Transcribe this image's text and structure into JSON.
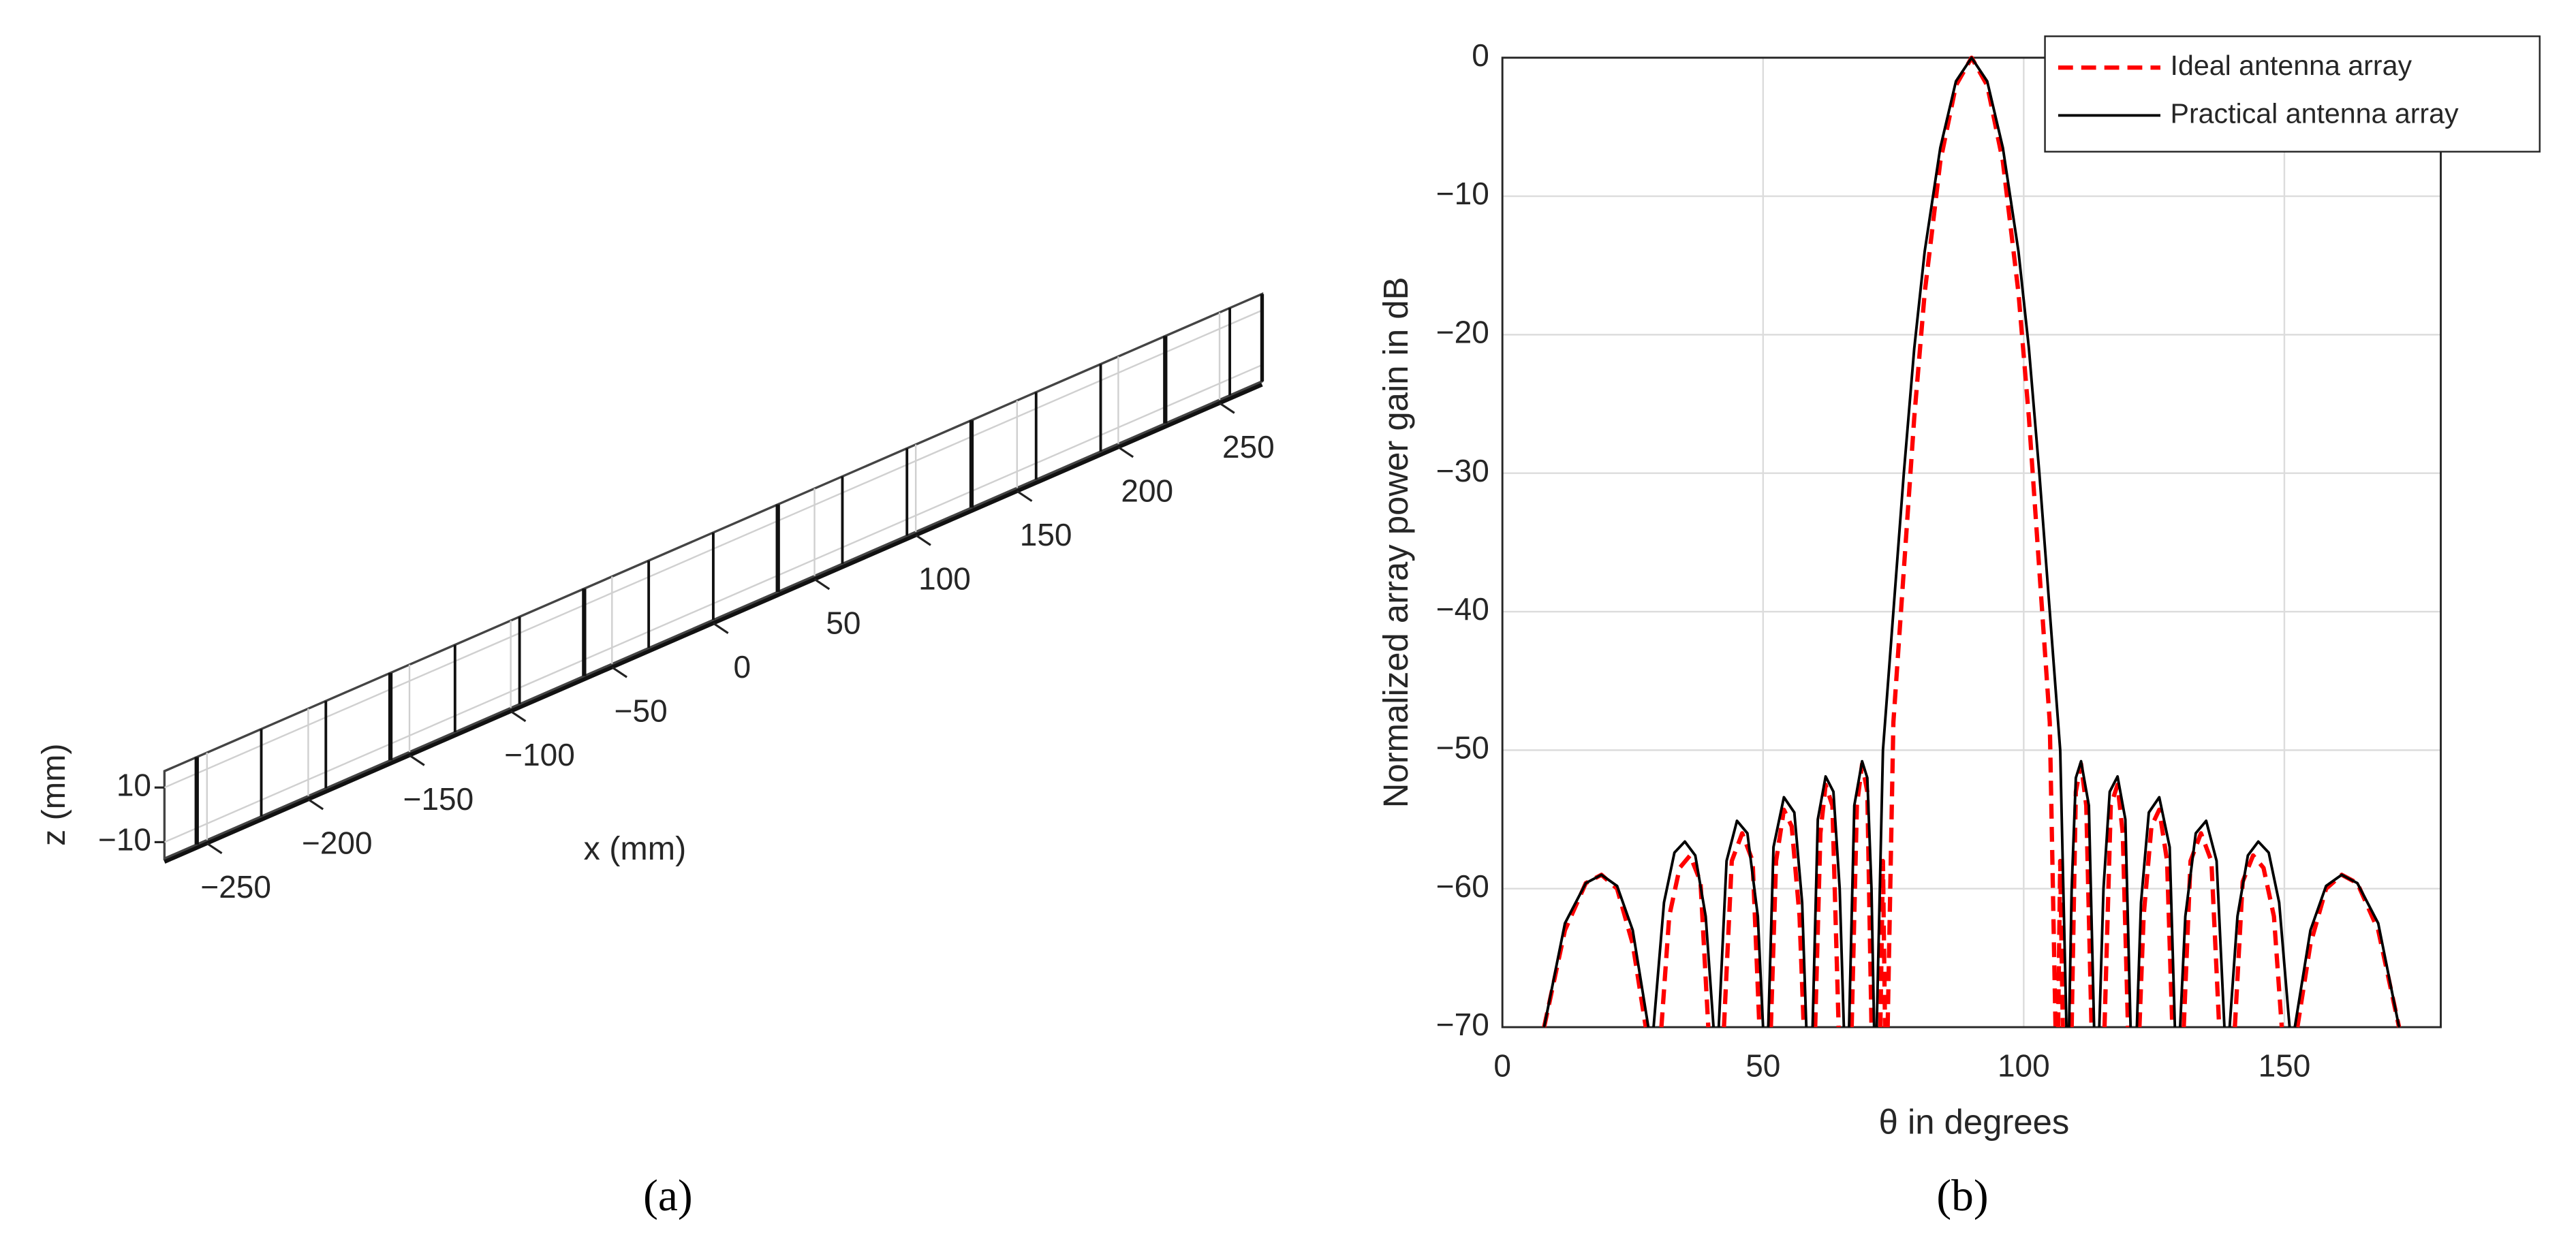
{
  "chart_data": [
    {
      "type": "array3d",
      "xlabel": "x (mm)",
      "zlabel": "z (mm)",
      "caption": "(a)",
      "xlim": [
        -271,
        271
      ],
      "xticks": [
        {
          "value": -250,
          "label": "−250"
        },
        {
          "value": -200,
          "label": "−200"
        },
        {
          "value": -150,
          "label": "−150"
        },
        {
          "value": -100,
          "label": "−100"
        },
        {
          "value": -50,
          "label": "−50"
        },
        0,
        50,
        100,
        150,
        200,
        250
      ],
      "zlim": [
        -16,
        16
      ],
      "zticks": [
        10,
        {
          "value": -10,
          "label": "−10"
        }
      ],
      "grid": true
    },
    {
      "type": "line",
      "xlabel": "θ in degrees",
      "ylabel": "Normalized array power gain in dB",
      "caption": "(b)",
      "xlim": [
        0,
        180
      ],
      "xticks": [
        0,
        50,
        100,
        150
      ],
      "ylim": [
        -70,
        0
      ],
      "yticks": [
        0,
        {
          "value": -10,
          "label": "−10"
        },
        {
          "value": -20,
          "label": "−20"
        },
        {
          "value": -30,
          "label": "−30"
        },
        {
          "value": -40,
          "label": "−40"
        },
        {
          "value": -50,
          "label": "−50"
        },
        {
          "value": -60,
          "label": "−60"
        },
        {
          "value": -70,
          "label": "−70"
        }
      ],
      "grid": true,
      "legend": "upper right",
      "series": [
        {
          "name": "Ideal antenna array",
          "color": "#ff0000",
          "linestyle": "dashed",
          "x": [
            8,
            12,
            16,
            19,
            22,
            25,
            27.5,
            null,
            30.5,
            32,
            34,
            36,
            38,
            39.5,
            null,
            42.5,
            44,
            46,
            48,
            49.3,
            null,
            51.5,
            52.5,
            54,
            55.5,
            57,
            57.8,
            null,
            60,
            61,
            62,
            63.3,
            64.5,
            null,
            67,
            68,
            69,
            70,
            70.8,
            null,
            72.5,
            73,
            73.4,
            null,
            73.9,
            75,
            77,
            79,
            81,
            84,
            87,
            90,
            93,
            96,
            99,
            101,
            103,
            105,
            106.1,
            null,
            106.6,
            107,
            107.5,
            null,
            109.2,
            110,
            111,
            112,
            113,
            null,
            115.5,
            116.7,
            118,
            119,
            120,
            null,
            122.2,
            123,
            124.5,
            126,
            127.5,
            128.5,
            null,
            130.7,
            132,
            134,
            136,
            137.5,
            null,
            140.5,
            142,
            144,
            146,
            148,
            149.5,
            null,
            152.5,
            155,
            158,
            161,
            164,
            168,
            172
          ],
          "values": [
            -70,
            -63,
            -59.6,
            -59,
            -60,
            -64,
            -70,
            null,
            -70,
            -62,
            -58.5,
            -57.6,
            -59.5,
            -70,
            null,
            -70,
            -58,
            -56,
            -58,
            -70,
            null,
            -70,
            -58,
            -54.3,
            -55.5,
            -62,
            -70,
            null,
            -70,
            -56,
            -52.5,
            -54,
            -70,
            null,
            -70,
            -54,
            -51,
            -53,
            -70,
            null,
            -70,
            -58,
            -70,
            null,
            -70,
            -48,
            -37,
            -26,
            -17,
            -7.5,
            -2,
            0,
            -2,
            -7.5,
            -17,
            -26,
            -37,
            -48,
            -70,
            null,
            -70,
            -58,
            -70,
            null,
            -70,
            -53,
            -51,
            -54,
            -70,
            null,
            -70,
            -54,
            -52.5,
            -56,
            -70,
            null,
            -70,
            -62,
            -55.5,
            -54.3,
            -58,
            -70,
            null,
            -70,
            -58,
            -56,
            -58,
            -70,
            null,
            -70,
            -59.5,
            -57.6,
            -58.5,
            -62,
            -70,
            null,
            -70,
            -64,
            -60,
            -59,
            -59.6,
            -63,
            -70
          ]
        },
        {
          "name": "Practical antenna array",
          "color": "#000000",
          "linestyle": "solid",
          "x": [
            8,
            12,
            16,
            19,
            22,
            25,
            28,
            null,
            29,
            31,
            33,
            35,
            37,
            39,
            40.5,
            null,
            41.5,
            43,
            45,
            47,
            49,
            50,
            null,
            51,
            52,
            54,
            56,
            57.5,
            58.3,
            null,
            59.5,
            60.5,
            62,
            63.5,
            64.7,
            65.5,
            null,
            66.5,
            67.5,
            69,
            70,
            70.8,
            71.3,
            null,
            71.8,
            73,
            75,
            77,
            79,
            81,
            84,
            87,
            90,
            93,
            96,
            99,
            101,
            103,
            105,
            107,
            108.2,
            null,
            108.7,
            109.2,
            110,
            111,
            112.5,
            113.5,
            null,
            114.5,
            115.3,
            116.5,
            118,
            119.5,
            120.5,
            null,
            121.7,
            122.5,
            124,
            126,
            128,
            129,
            null,
            130,
            131,
            133,
            135,
            137,
            138.5,
            null,
            139.5,
            141,
            143,
            145,
            147,
            149,
            151,
            null,
            152,
            155,
            158,
            161,
            164,
            168,
            172
          ],
          "values": [
            -70,
            -62.5,
            -59.6,
            -59,
            -59.8,
            -63,
            -70,
            null,
            -70,
            -61,
            -57.4,
            -56.6,
            -57.6,
            -62,
            -70,
            null,
            -70,
            -58,
            -55.1,
            -56,
            -62,
            -70,
            null,
            -70,
            -57,
            -53.4,
            -54.5,
            -61,
            -70,
            null,
            -70,
            -55,
            -51.9,
            -53,
            -60,
            -70,
            null,
            -70,
            -54,
            -50.8,
            -52,
            -60,
            -70,
            null,
            -70,
            -50,
            -40,
            -30,
            -21,
            -14,
            -6.5,
            -1.7,
            0,
            -1.7,
            -6.5,
            -14,
            -21,
            -30,
            -40,
            -50,
            -70,
            null,
            -70,
            -60,
            -52,
            -50.8,
            -54,
            -70,
            null,
            -70,
            -60,
            -53,
            -51.9,
            -55,
            -70,
            null,
            -70,
            -61,
            -54.5,
            -53.4,
            -57,
            -70,
            null,
            -70,
            -62,
            -56,
            -55.1,
            -58,
            -70,
            null,
            -70,
            -62,
            -57.6,
            -56.6,
            -57.4,
            -61,
            -70,
            null,
            -70,
            -63,
            -59.8,
            -59,
            -59.6,
            -62.5,
            -70
          ]
        }
      ]
    }
  ]
}
